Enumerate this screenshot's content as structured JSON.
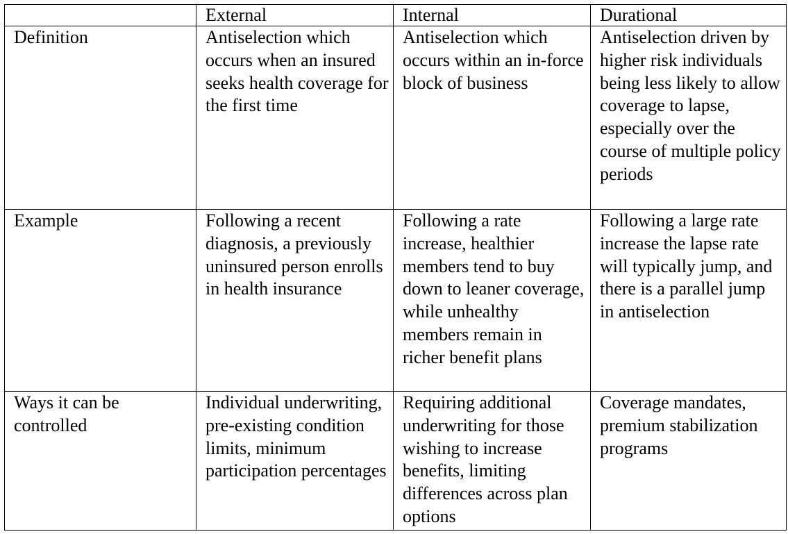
{
  "table": {
    "columns": [
      "",
      "External",
      "Internal",
      "Durational"
    ],
    "rows": [
      {
        "label": "Definition",
        "external": "Antiselection which occurs when an insured seeks health coverage for the first time",
        "internal": "Antiselection which occurs within an in-force block of business",
        "durational": "Antiselection driven by higher risk individuals being less likely to allow coverage to lapse, especially over the course of multiple policy periods"
      },
      {
        "label": "Example",
        "external": "Following a recent diagnosis, a previously uninsured person enrolls in health insurance",
        "internal": "Following a rate increase, healthier members tend to buy down to leaner coverage, while unhealthy members remain in richer benefit plans",
        "durational": "Following a large rate increase the lapse rate will typically jump, and there is a parallel jump in antiselection"
      },
      {
        "label": "Ways it can be controlled",
        "external": "Individual underwriting, pre-existing condition limits, minimum participation percentages",
        "internal": "Requiring additional underwriting for those wishing to increase benefits, limiting differences across plan options",
        "durational": "Coverage mandates, premium stabilization programs"
      }
    ]
  }
}
